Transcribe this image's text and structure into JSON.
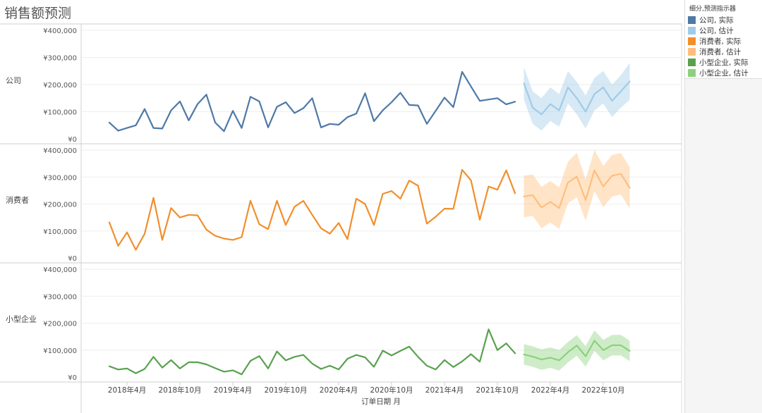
{
  "page_title": "销售额预测",
  "legend": {
    "title": "细分,预测指示器",
    "items": [
      {
        "label": "公司, 实际",
        "color": "#4e79a7"
      },
      {
        "label": "公司, 估计",
        "color": "#a0cbe8"
      },
      {
        "label": "消费者, 实际",
        "color": "#f28e2b"
      },
      {
        "label": "消费者, 估计",
        "color": "#ffbe7d"
      },
      {
        "label": "小型企业, 实际",
        "color": "#59a14f"
      },
      {
        "label": "小型企业, 估计",
        "color": "#8cd17d"
      }
    ]
  },
  "chart_data": {
    "type": "line",
    "title": "销售额预测",
    "xlabel": "订单日期 月",
    "x_ticks": [
      "2018年4月",
      "2018年10月",
      "2019年4月",
      "2019年10月",
      "2020年4月",
      "2020年10月",
      "2021年4月",
      "2021年10月",
      "2022年4月",
      "2022年10月"
    ],
    "x_tick_month_index": [
      3,
      9,
      15,
      21,
      27,
      33,
      39,
      45,
      51,
      57
    ],
    "month_start": "2018-01",
    "y_ticks": [
      "¥0",
      "¥100,000",
      "¥200,000",
      "¥300,000",
      "¥400,000"
    ],
    "ylim": [
      0,
      400000
    ],
    "panels": [
      {
        "name": "公司",
        "actual_color": "#4e79a7",
        "estimate_color": "#a0cbe8",
        "actual": [
          60000,
          30000,
          40000,
          50000,
          110000,
          40000,
          38000,
          105000,
          138000,
          68000,
          128000,
          163000,
          60000,
          28000,
          103000,
          40000,
          155000,
          138000,
          42000,
          118000,
          135000,
          95000,
          113000,
          150000,
          42000,
          55000,
          52000,
          80000,
          93000,
          168000,
          65000,
          105000,
          135000,
          170000,
          125000,
          123000,
          55000,
          103000,
          152000,
          117000,
          247000,
          193000,
          140000,
          145000,
          150000,
          127000,
          137000
        ],
        "estimate": [
          205000,
          115000,
          90000,
          128000,
          105000,
          190000,
          150000,
          100000,
          165000,
          190000,
          140000,
          175000,
          212000
        ],
        "estimate_upper": [
          265000,
          175000,
          150000,
          190000,
          165000,
          250000,
          210000,
          160000,
          225000,
          250000,
          200000,
          235000,
          280000
        ],
        "estimate_lower": [
          145000,
          55000,
          30000,
          66000,
          45000,
          130000,
          90000,
          38000,
          105000,
          130000,
          80000,
          115000,
          144000
        ]
      },
      {
        "name": "消费者",
        "actual_color": "#f28e2b",
        "estimate_color": "#ffbe7d",
        "actual": [
          132000,
          45000,
          95000,
          30000,
          90000,
          223000,
          67000,
          185000,
          150000,
          160000,
          158000,
          105000,
          82000,
          72000,
          67000,
          77000,
          212000,
          125000,
          107000,
          212000,
          122000,
          190000,
          212000,
          160000,
          110000,
          90000,
          130000,
          70000,
          220000,
          200000,
          122000,
          238000,
          248000,
          220000,
          287000,
          268000,
          127000,
          153000,
          183000,
          182000,
          327000,
          288000,
          142000,
          265000,
          253000,
          325000,
          240000
        ],
        "estimate": [
          228000,
          233000,
          187000,
          208000,
          185000,
          280000,
          302000,
          215000,
          325000,
          265000,
          305000,
          312000,
          260000
        ],
        "estimate_upper": [
          305000,
          310000,
          264000,
          285000,
          262000,
          357000,
          390000,
          292000,
          400000,
          342000,
          382000,
          389000,
          337000
        ],
        "estimate_lower": [
          151000,
          156000,
          110000,
          131000,
          108000,
          203000,
          225000,
          138000,
          248000,
          188000,
          228000,
          235000,
          183000
        ]
      },
      {
        "name": "小型企业",
        "actual_color": "#59a14f",
        "estimate_color": "#8cd17d",
        "actual": [
          40000,
          28000,
          32000,
          14000,
          30000,
          75000,
          35000,
          63000,
          32000,
          55000,
          55000,
          47000,
          33000,
          20000,
          25000,
          10000,
          60000,
          78000,
          32000,
          95000,
          62000,
          75000,
          82000,
          50000,
          30000,
          42000,
          28000,
          68000,
          82000,
          73000,
          38000,
          98000,
          80000,
          97000,
          113000,
          75000,
          42000,
          28000,
          63000,
          37000,
          58000,
          85000,
          57000,
          177000,
          100000,
          125000,
          88000
        ],
        "estimate": [
          84000,
          76000,
          65000,
          72000,
          62000,
          92000,
          117000,
          77000,
          135000,
          100000,
          118000,
          118000,
          97000
        ],
        "estimate_upper": [
          122000,
          114000,
          103000,
          110000,
          100000,
          130000,
          155000,
          115000,
          173000,
          138000,
          156000,
          156000,
          135000
        ],
        "estimate_lower": [
          46000,
          38000,
          27000,
          34000,
          24000,
          54000,
          79000,
          39000,
          97000,
          62000,
          80000,
          80000,
          59000
        ]
      }
    ]
  }
}
